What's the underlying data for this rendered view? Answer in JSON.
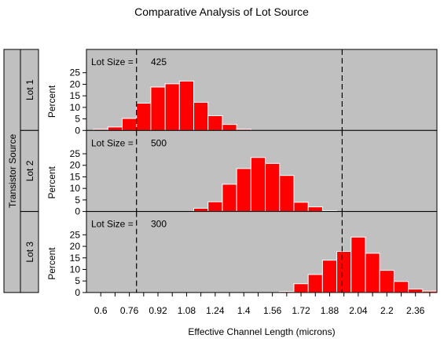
{
  "colors": {
    "page_background": "#ffffff",
    "panel_background": "#c0c0c0",
    "bar_fill": "#ff0000",
    "bar_edge": "#ffffff",
    "axis": "#000000",
    "reference_line": "#000000"
  },
  "chart_data": {
    "type": "bar",
    "title": "Comparative Analysis of Lot Source",
    "xlabel": "Effective Channel Length (microns)",
    "ylabel": "Percent",
    "group_label": "Transistor Source",
    "bin_width": 0.08,
    "xlim": [
      0.52,
      2.48
    ],
    "ylim": [
      0,
      30
    ],
    "x_ticks": [
      0.6,
      0.68,
      0.76,
      0.84,
      0.92,
      1.0,
      1.08,
      1.16,
      1.24,
      1.32,
      1.4,
      1.48,
      1.56,
      1.64,
      1.72,
      1.8,
      1.88,
      1.96,
      2.04,
      2.12,
      2.2,
      2.28,
      2.36,
      2.44
    ],
    "x_tick_labels": [
      "0.6",
      "",
      "0.76",
      "",
      "0.92",
      "",
      "1.08",
      "",
      "1.24",
      "",
      "1.4",
      "",
      "1.56",
      "",
      "1.72",
      "",
      "1.88",
      "",
      "2.04",
      "",
      "2.2",
      "",
      "2.36",
      ""
    ],
    "y_ticks": [
      0,
      5,
      10,
      15,
      20,
      25
    ],
    "y_tick_labels": [
      "0",
      "5",
      "10",
      "15",
      "20",
      "25"
    ],
    "reference_lines": [
      0.8,
      1.95
    ],
    "grid": false,
    "panels": [
      {
        "label": "Lot 1",
        "size_label": "Lot Size =",
        "size_value": "425",
        "bin_midpoints": [
          0.6,
          0.68,
          0.76,
          0.84,
          0.92,
          1.0,
          1.08,
          1.16,
          1.24,
          1.32,
          1.4
        ],
        "values": [
          0.5,
          1.5,
          5.2,
          11.8,
          18.8,
          20.2,
          21.4,
          12.2,
          6.4,
          2.6,
          0.5
        ]
      },
      {
        "label": "Lot 2",
        "size_label": "Lot Size =",
        "size_value": "500",
        "bin_midpoints": [
          1.16,
          1.24,
          1.32,
          1.4,
          1.48,
          1.56,
          1.64,
          1.72,
          1.8,
          1.88
        ],
        "values": [
          1.4,
          4.2,
          11.8,
          18.6,
          23.4,
          20.8,
          15.6,
          4.0,
          2.0,
          0.3
        ]
      },
      {
        "label": "Lot 3",
        "size_label": "Lot Size =",
        "size_value": "300",
        "bin_midpoints": [
          1.64,
          1.72,
          1.8,
          1.88,
          1.96,
          2.04,
          2.12,
          2.2,
          2.28,
          2.36,
          2.44
        ],
        "values": [
          0.4,
          3.8,
          7.8,
          14.0,
          17.8,
          24.0,
          17.0,
          9.6,
          4.8,
          1.5,
          0.6
        ]
      }
    ]
  }
}
